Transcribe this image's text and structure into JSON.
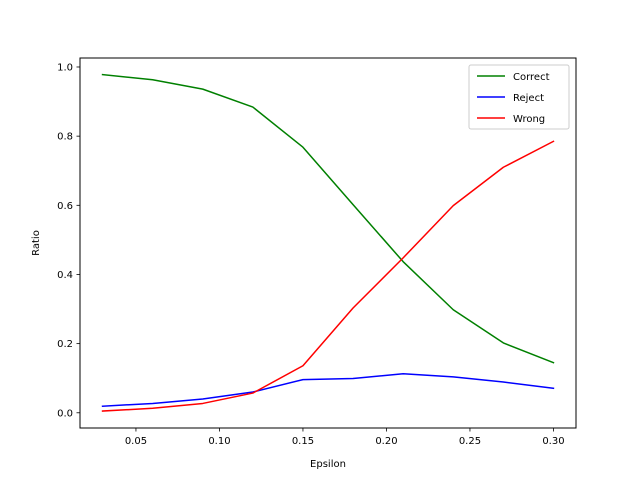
{
  "chart_data": {
    "type": "line",
    "title": "",
    "xlabel": "Epsilon",
    "ylabel": "Ratio",
    "x": [
      0.03,
      0.06,
      0.09,
      0.12,
      0.15,
      0.18,
      0.21,
      0.24,
      0.27,
      0.3
    ],
    "xlim": [
      0.0165,
      0.3135
    ],
    "ylim": [
      -0.044,
      1.026
    ],
    "xticks": [
      "0.05",
      "0.10",
      "0.15",
      "0.20",
      "0.25",
      "0.30"
    ],
    "xtick_values": [
      0.05,
      0.1,
      0.15,
      0.2,
      0.25,
      0.3
    ],
    "yticks": [
      "0.0",
      "0.2",
      "0.4",
      "0.6",
      "0.8",
      "1.0"
    ],
    "ytick_values": [
      0.0,
      0.2,
      0.4,
      0.6,
      0.8,
      1.0
    ],
    "grid": false,
    "legend_position": "upper right",
    "series": [
      {
        "name": "Correct",
        "color": "#008000",
        "values": [
          0.978,
          0.963,
          0.936,
          0.884,
          0.768,
          0.602,
          0.437,
          0.298,
          0.202,
          0.145
        ]
      },
      {
        "name": "Reject",
        "color": "#0000ff",
        "values": [
          0.019,
          0.027,
          0.04,
          0.06,
          0.096,
          0.099,
          0.113,
          0.104,
          0.089,
          0.071
        ]
      },
      {
        "name": "Wrong",
        "color": "#ff0000",
        "values": [
          0.005,
          0.013,
          0.027,
          0.057,
          0.136,
          0.303,
          0.448,
          0.599,
          0.71,
          0.785
        ]
      }
    ]
  }
}
